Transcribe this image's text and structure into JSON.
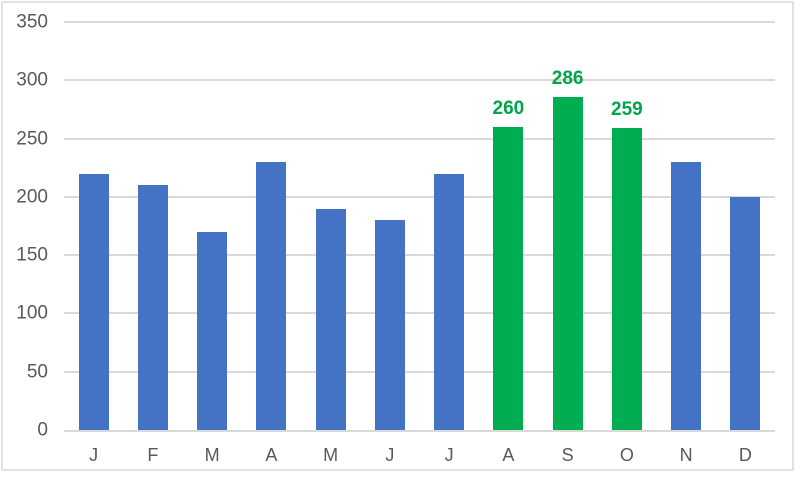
{
  "chart_data": {
    "type": "bar",
    "title": "",
    "xlabel": "",
    "ylabel": "",
    "categories": [
      "J",
      "F",
      "M",
      "A",
      "M",
      "J",
      "J",
      "A",
      "S",
      "O",
      "N",
      "D"
    ],
    "values": [
      220,
      210,
      170,
      230,
      190,
      180,
      220,
      260,
      286,
      259,
      230,
      200
    ],
    "point_labels": [
      "",
      "",
      "",
      "",
      "",
      "",
      "",
      "260",
      "286",
      "259",
      "",
      ""
    ],
    "highlighted_indices": [
      7,
      8,
      9
    ],
    "ylim": [
      0,
      350
    ],
    "yticks": [
      0,
      50,
      100,
      150,
      200,
      250,
      300,
      350
    ],
    "grid": true,
    "legend": false,
    "colors": {
      "bar": "#4472C4",
      "bar_highlight": "#00AE51",
      "data_label_text": "#00A44C",
      "axis_text": "#595959",
      "gridline": "#D9D9D9",
      "frame_border": "#E2E2E2"
    }
  }
}
